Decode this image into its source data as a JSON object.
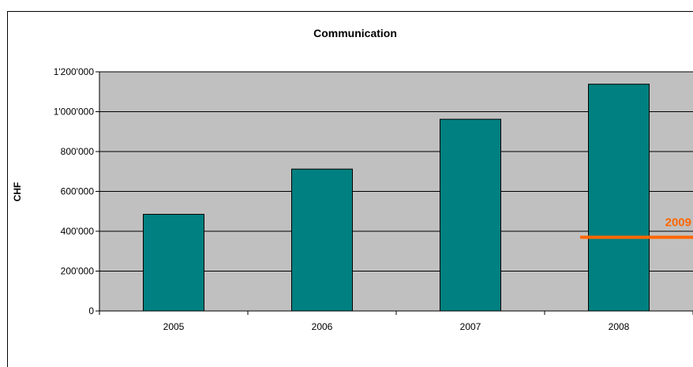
{
  "chart_data": {
    "type": "bar",
    "title": "Communication",
    "xlabel": "",
    "ylabel": "CHF",
    "categories": [
      "2005",
      "2006",
      "2007",
      "2008"
    ],
    "values": [
      485000,
      712000,
      962000,
      1138000
    ],
    "ylim": [
      0,
      1200000
    ],
    "yticks": [
      0,
      200000,
      400000,
      600000,
      800000,
      1000000,
      1200000
    ],
    "ytick_labels": [
      "0",
      "200'000",
      "400'000",
      "600'000",
      "800'000",
      "1'000'000",
      "1'200'000"
    ],
    "grid": true,
    "reference_line": {
      "label": "2009",
      "value": 370000,
      "color": "#ff6600"
    },
    "colors": {
      "bar": "#008080",
      "plot_background": "#c0c0c0",
      "reference": "#ff6600"
    }
  }
}
